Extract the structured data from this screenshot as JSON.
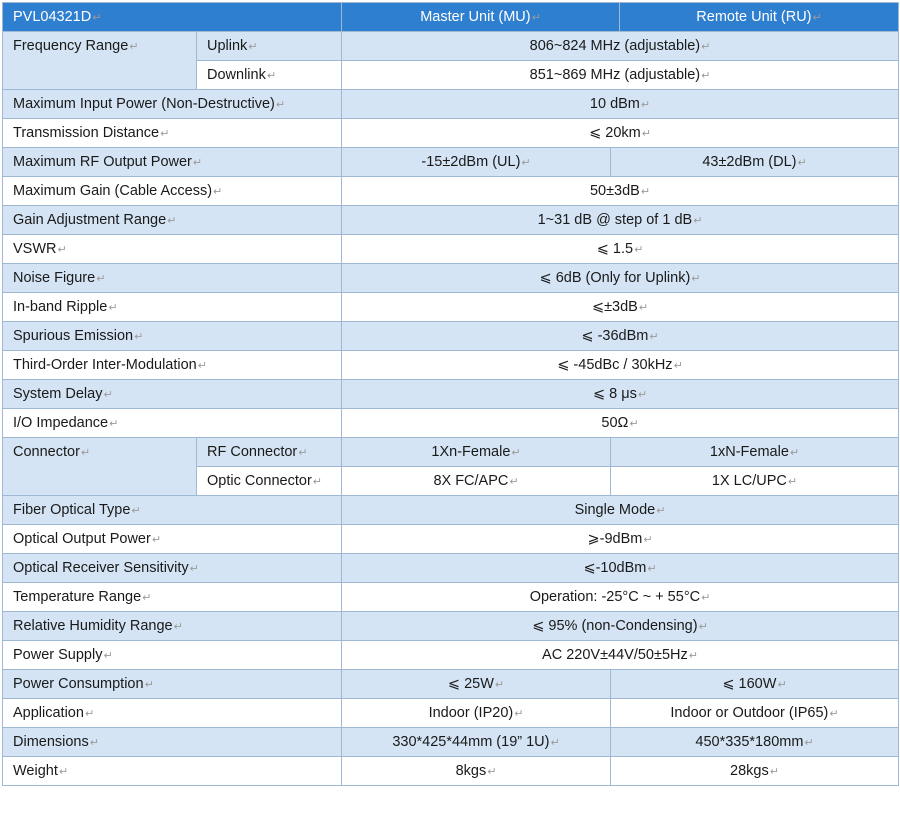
{
  "header": {
    "model": "PVL04321D",
    "master": "Master Unit (MU)",
    "remote": "Remote Unit (RU)"
  },
  "rows": {
    "freq_label": "Frequency Range",
    "uplink_label": "Uplink",
    "uplink_val": "806~824 MHz (adjustable)",
    "downlink_label": "Downlink",
    "downlink_val": "851~869 MHz (adjustable)",
    "max_input_label": "Maximum Input Power (Non-Destructive)",
    "max_input_val": "10 dBm",
    "trans_dist_label": "Transmission Distance",
    "trans_dist_val": "⩽ 20km",
    "rf_out_label": "Maximum RF Output Power",
    "rf_out_mu": "-15±2dBm (UL)",
    "rf_out_ru": "43±2dBm (DL)",
    "max_gain_label": "Maximum Gain (Cable Access)",
    "max_gain_val": "50±3dB",
    "gain_adj_label": "Gain Adjustment Range",
    "gain_adj_val": "1~31 dB @ step of 1 dB",
    "vswr_label": "VSWR",
    "vswr_val": "⩽ 1.5",
    "noise_label": "Noise Figure",
    "noise_val": "⩽ 6dB (Only for Uplink)",
    "ripple_label": "In-band Ripple",
    "ripple_val": "⩽±3dB",
    "spurious_label": "Spurious Emission",
    "spurious_val": "⩽ -36dBm",
    "third_order_label": "Third-Order Inter-Modulation",
    "third_order_val": "⩽ -45dBc / 30kHz",
    "delay_label": "System Delay",
    "delay_val": "⩽ 8 μs",
    "impedance_label": "I/O Impedance",
    "impedance_val": "50Ω",
    "connector_label": "Connector",
    "rf_conn_label": "RF Connector",
    "rf_conn_mu": "1Xn-Female",
    "rf_conn_ru": "1xN-Female",
    "optic_conn_label": "Optic Connector",
    "optic_conn_mu": "8X FC/APC",
    "optic_conn_ru": "1X LC/UPC",
    "fiber_label": "Fiber Optical Type",
    "fiber_val": "Single Mode",
    "opt_out_label": "Optical Output Power",
    "opt_out_val": "⩾-9dBm",
    "opt_sens_label": "Optical Receiver Sensitivity",
    "opt_sens_val": "⩽-10dBm",
    "temp_label": "Temperature Range",
    "temp_val": "Operation: -25°C ~ + 55°C",
    "humidity_label": "Relative Humidity Range",
    "humidity_val": "⩽ 95% (non-Condensing)",
    "power_supply_label": "Power Supply",
    "power_supply_val": "AC 220V±44V/50±5Hz",
    "power_cons_label": "Power Consumption",
    "power_cons_mu": "⩽ 25W",
    "power_cons_ru": "⩽ 160W",
    "application_label": "Application",
    "application_mu": "Indoor (IP20)",
    "application_ru": "Indoor or Outdoor (IP65)",
    "dimensions_label": "Dimensions",
    "dimensions_mu": "330*425*44mm (19” 1U)",
    "dimensions_ru": "450*335*180mm",
    "weight_label": "Weight",
    "weight_mu": "8kgs",
    "weight_ru": "28kgs"
  },
  "marker": "↵",
  "colors": {
    "header_bg": "#2f7fd0",
    "row_shade": "#d4e4f4",
    "border": "#9fb8d3"
  }
}
